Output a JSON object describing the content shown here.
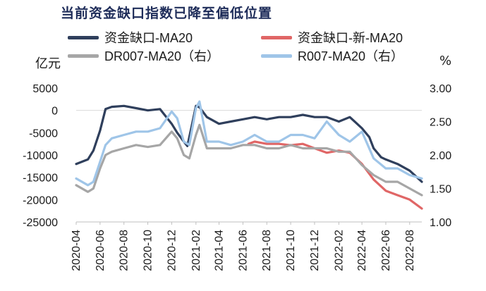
{
  "chart_data": {
    "type": "line",
    "title": "当前资金缺口指数已降至偏低位置",
    "left_axis": {
      "unit_label": "亿元",
      "ylim": [
        -25000,
        5000
      ],
      "ticks": [
        5000,
        0,
        -5000,
        -10000,
        -15000,
        -20000,
        -25000
      ]
    },
    "right_axis": {
      "unit_label": "%",
      "ylim": [
        1.0,
        3.0
      ],
      "ticks": [
        3.0,
        2.5,
        2.0,
        1.5,
        1.0
      ],
      "tick_labels": [
        "3.00",
        "2.50",
        "2.00",
        "1.50",
        "1.00"
      ]
    },
    "x_ticks": [
      "2020-04",
      "2020-06",
      "2020-08",
      "2020-10",
      "2020-12",
      "2021-02",
      "2021-04",
      "2021-06",
      "2021-08",
      "2021-10",
      "2021-12",
      "2022-02",
      "2022-04",
      "2022-06",
      "2022-08"
    ],
    "x_range": [
      "2020-04",
      "2022-09"
    ],
    "series": [
      {
        "name": "资金缺口-MA20",
        "axis": "left",
        "color": "#2f3f5c",
        "points": [
          [
            "2020-04",
            -12000
          ],
          [
            "2020-05-01",
            -11000
          ],
          [
            "2020-05-15",
            -9000
          ],
          [
            "2020-06-01",
            -4500
          ],
          [
            "2020-06-15",
            300
          ],
          [
            "2020-07-01",
            800
          ],
          [
            "2020-08-01",
            1000
          ],
          [
            "2020-09-01",
            500
          ],
          [
            "2020-10-01",
            0
          ],
          [
            "2020-11-01",
            300
          ],
          [
            "2020-12-01",
            -3000
          ],
          [
            "2020-12-15",
            -5000
          ],
          [
            "2021-01-01",
            -7000
          ],
          [
            "2021-01-10",
            -8000
          ],
          [
            "2021-01-20",
            -4000
          ],
          [
            "2021-02-01",
            1000
          ],
          [
            "2021-02-10",
            700
          ],
          [
            "2021-03-01",
            -1500
          ],
          [
            "2021-04-01",
            -3000
          ],
          [
            "2021-05-01",
            -2500
          ],
          [
            "2021-06-01",
            -2000
          ],
          [
            "2021-07-01",
            -1500
          ],
          [
            "2021-08-01",
            -2000
          ],
          [
            "2021-09-01",
            -1500
          ],
          [
            "2021-10-01",
            -1500
          ],
          [
            "2021-11-01",
            -1000
          ],
          [
            "2021-12-01",
            -1500
          ],
          [
            "2022-01-01",
            -1500
          ],
          [
            "2022-02-01",
            -2500
          ],
          [
            "2022-03-01",
            -1500
          ],
          [
            "2022-04-01",
            -4000
          ],
          [
            "2022-04-20",
            -6000
          ],
          [
            "2022-05-01",
            -8500
          ],
          [
            "2022-05-20",
            -10500
          ],
          [
            "2022-06-01",
            -11000
          ],
          [
            "2022-07-01",
            -12000
          ],
          [
            "2022-08-01",
            -13500
          ],
          [
            "2022-09-01",
            -16000
          ]
        ]
      },
      {
        "name": "资金缺口-新-MA20",
        "axis": "left",
        "color": "#e06666",
        "points": [
          [
            "2021-06-15",
            -7500
          ],
          [
            "2021-07-01",
            -7000
          ],
          [
            "2021-08-01",
            -7500
          ],
          [
            "2021-09-01",
            -7500
          ],
          [
            "2021-10-01",
            -7800
          ],
          [
            "2021-11-01",
            -7500
          ],
          [
            "2021-12-01",
            -8500
          ],
          [
            "2022-01-01",
            -9500
          ],
          [
            "2022-02-01",
            -9000
          ],
          [
            "2022-03-01",
            -9500
          ],
          [
            "2022-04-01",
            -12000
          ],
          [
            "2022-05-01",
            -15500
          ],
          [
            "2022-06-01",
            -18000
          ],
          [
            "2022-07-01",
            -19000
          ],
          [
            "2022-08-01",
            -20000
          ],
          [
            "2022-09-01",
            -22000
          ]
        ]
      },
      {
        "name": "DR007-MA20（右）",
        "axis": "right",
        "color": "#a6a6a6",
        "points": [
          [
            "2020-04",
            1.55
          ],
          [
            "2020-05-01",
            1.45
          ],
          [
            "2020-05-15",
            1.5
          ],
          [
            "2020-06-01",
            1.8
          ],
          [
            "2020-06-15",
            2.0
          ],
          [
            "2020-07-01",
            2.05
          ],
          [
            "2020-08-01",
            2.1
          ],
          [
            "2020-09-01",
            2.15
          ],
          [
            "2020-10-01",
            2.12
          ],
          [
            "2020-11-01",
            2.15
          ],
          [
            "2020-12-01",
            2.35
          ],
          [
            "2020-12-15",
            2.25
          ],
          [
            "2021-01-01",
            2.0
          ],
          [
            "2021-01-15",
            1.95
          ],
          [
            "2021-02-01",
            2.3
          ],
          [
            "2021-02-10",
            2.45
          ],
          [
            "2021-03-01",
            2.1
          ],
          [
            "2021-04-01",
            2.1
          ],
          [
            "2021-05-01",
            2.1
          ],
          [
            "2021-06-01",
            2.15
          ],
          [
            "2021-07-01",
            2.15
          ],
          [
            "2021-08-01",
            2.1
          ],
          [
            "2021-09-01",
            2.1
          ],
          [
            "2021-10-01",
            2.15
          ],
          [
            "2021-11-01",
            2.1
          ],
          [
            "2021-12-01",
            2.1
          ],
          [
            "2022-01-01",
            2.1
          ],
          [
            "2022-02-01",
            2.05
          ],
          [
            "2022-03-01",
            2.05
          ],
          [
            "2022-04-01",
            1.85
          ],
          [
            "2022-05-01",
            1.7
          ],
          [
            "2022-06-01",
            1.6
          ],
          [
            "2022-07-01",
            1.6
          ],
          [
            "2022-08-01",
            1.5
          ],
          [
            "2022-09-01",
            1.4
          ]
        ]
      },
      {
        "name": "R007-MA20（右）",
        "axis": "right",
        "color": "#9fc5e8",
        "points": [
          [
            "2020-04",
            1.65
          ],
          [
            "2020-05-01",
            1.55
          ],
          [
            "2020-05-15",
            1.6
          ],
          [
            "2020-06-01",
            1.9
          ],
          [
            "2020-06-15",
            2.15
          ],
          [
            "2020-07-01",
            2.25
          ],
          [
            "2020-08-01",
            2.3
          ],
          [
            "2020-09-01",
            2.35
          ],
          [
            "2020-10-01",
            2.35
          ],
          [
            "2020-11-01",
            2.4
          ],
          [
            "2020-12-01",
            2.65
          ],
          [
            "2020-12-15",
            2.55
          ],
          [
            "2021-01-01",
            2.2
          ],
          [
            "2021-01-15",
            2.15
          ],
          [
            "2021-02-01",
            2.7
          ],
          [
            "2021-02-10",
            2.8
          ],
          [
            "2021-03-01",
            2.2
          ],
          [
            "2021-04-01",
            2.2
          ],
          [
            "2021-05-01",
            2.15
          ],
          [
            "2021-06-01",
            2.2
          ],
          [
            "2021-07-01",
            2.3
          ],
          [
            "2021-08-01",
            2.2
          ],
          [
            "2021-09-01",
            2.2
          ],
          [
            "2021-10-01",
            2.3
          ],
          [
            "2021-11-01",
            2.3
          ],
          [
            "2021-12-01",
            2.25
          ],
          [
            "2022-01-01",
            2.5
          ],
          [
            "2022-02-01",
            2.3
          ],
          [
            "2022-03-01",
            2.2
          ],
          [
            "2022-04-01",
            2.35
          ],
          [
            "2022-05-01",
            1.95
          ],
          [
            "2022-06-01",
            1.8
          ],
          [
            "2022-07-01",
            1.8
          ],
          [
            "2022-08-01",
            1.7
          ],
          [
            "2022-09-01",
            1.65
          ]
        ]
      }
    ],
    "grid": false,
    "legend_placement": "top"
  }
}
